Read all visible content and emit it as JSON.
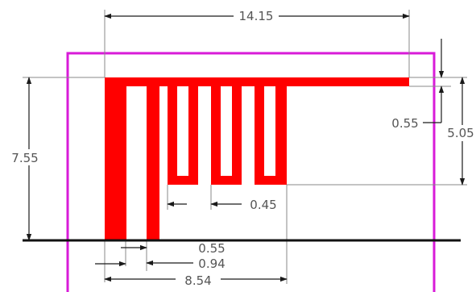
{
  "colors": {
    "antenna": "#ff0000",
    "boundary": "#d81bd8",
    "ground": "#111111",
    "dimension": "#1a1a1a",
    "extension": "#8a8a8a",
    "text": "#555555"
  },
  "dimensions": {
    "total_width": "14.15",
    "total_height": "7.55",
    "meander_height": "5.05",
    "top_strip": "0.55",
    "meander_gap": "0.45",
    "feed_strip": "0.55",
    "feed_offset": "0.94",
    "meander_width": "8.54"
  }
}
